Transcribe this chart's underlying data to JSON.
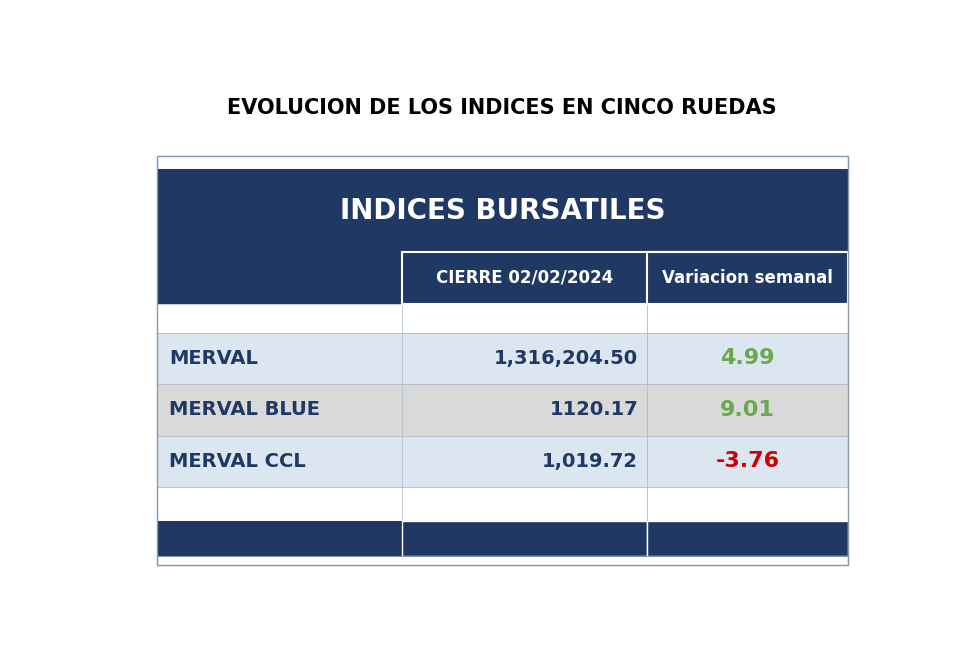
{
  "title": "EVOLUCION DE LOS INDICES EN CINCO RUEDAS",
  "table_header": "INDICES BURSATILES",
  "col_headers": [
    "",
    "CIERRE 02/02/2024",
    "Variacion semanal"
  ],
  "rows": [
    [
      "MERVAL",
      "1,316,204.50",
      "4.99"
    ],
    [
      "MERVAL BLUE",
      "1120.17",
      "9.01"
    ],
    [
      "MERVAL CCL",
      "1,019.72",
      "-3.76"
    ]
  ],
  "variation_colors": [
    "#6aa84f",
    "#6aa84f",
    "#cc0000"
  ],
  "header_bg": "#1f3864",
  "subheader_bg": "#1f3864",
  "row_bg_0": "#dce6f1",
  "row_bg_1": "#d9d9d9",
  "row_bg_2": "#dce6f1",
  "text_color_dark": "#1f3864",
  "text_color_white": "#ffffff",
  "footer_bg": "#1f3864",
  "background_color": "#ffffff",
  "title_fontsize": 15,
  "header_fontsize": 20,
  "subheader_fontsize": 12,
  "data_fontsize": 14
}
